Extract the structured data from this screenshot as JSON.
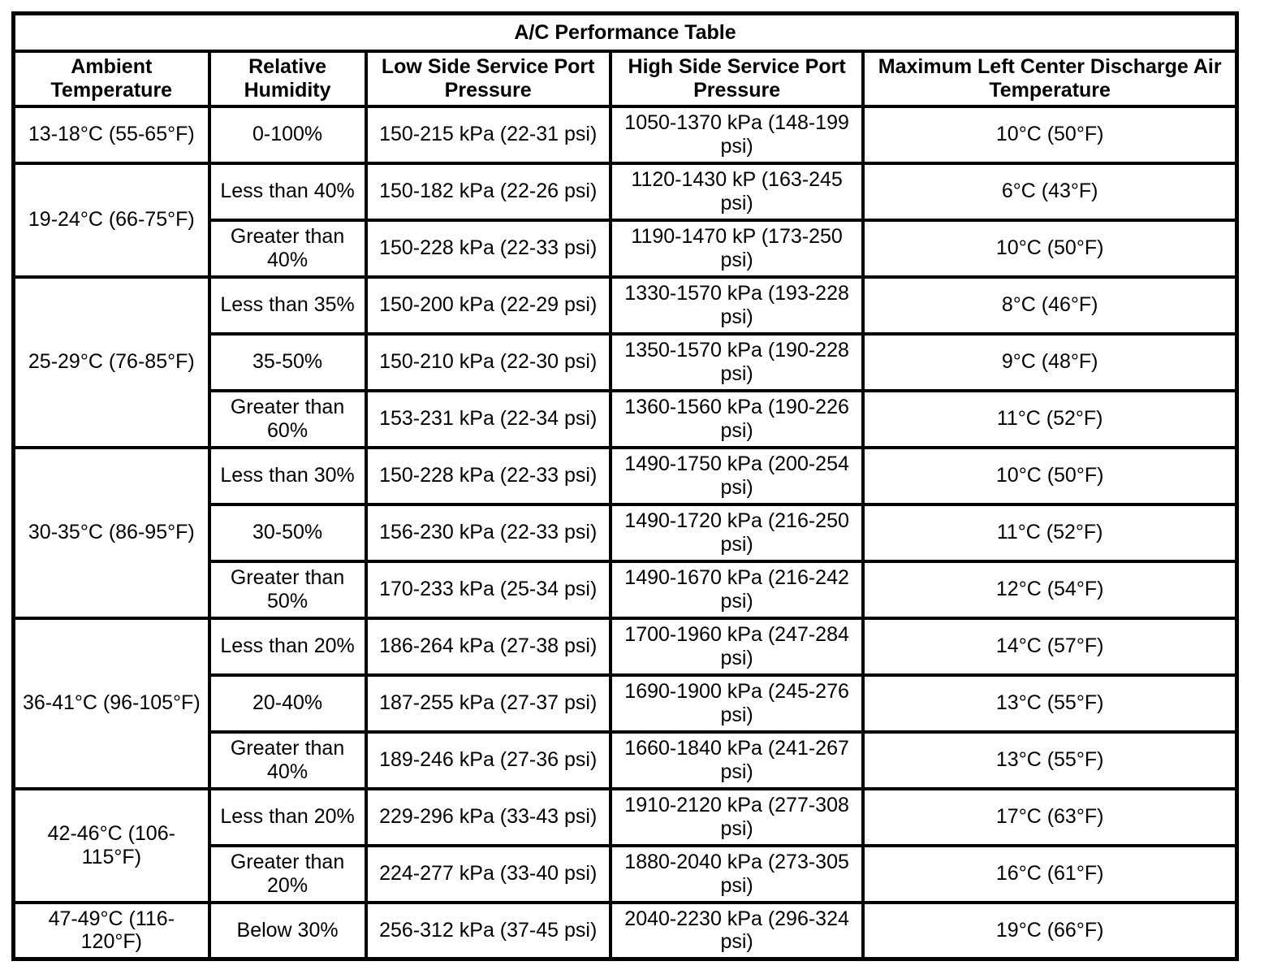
{
  "title": "A/C Performance Table",
  "columns": [
    "Ambient Temperature",
    "Relative Humidity",
    "Low Side Service Port Pressure",
    "High Side Service Port Pressure",
    "Maximum Left Center Discharge Air Temperature"
  ],
  "colors": {
    "border": "#000000",
    "background": "#ffffff",
    "text": "#000000"
  },
  "groups": [
    {
      "ambient": "13-18°C (55-65°F)",
      "rows": [
        {
          "humidity": "0-100%",
          "low_side": "150-215 kPa (22-31 psi)",
          "high_side": "1050-1370 kPa (148-199 psi)",
          "max_discharge": "10°C (50°F)"
        }
      ]
    },
    {
      "ambient": "19-24°C (66-75°F)",
      "rows": [
        {
          "humidity": "Less than 40%",
          "low_side": "150-182 kPa (22-26 psi)",
          "high_side": "1120-1430 kP (163-245 psi)",
          "max_discharge": "6°C (43°F)"
        },
        {
          "humidity": "Greater than 40%",
          "low_side": "150-228 kPa (22-33 psi)",
          "high_side": "1190-1470 kP (173-250 psi)",
          "max_discharge": "10°C (50°F)"
        }
      ]
    },
    {
      "ambient": "25-29°C (76-85°F)",
      "rows": [
        {
          "humidity": "Less than 35%",
          "low_side": "150-200 kPa (22-29 psi)",
          "high_side": "1330-1570 kPa (193-228 psi)",
          "max_discharge": "8°C (46°F)"
        },
        {
          "humidity": "35-50%",
          "low_side": "150-210 kPa (22-30 psi)",
          "high_side": "1350-1570 kPa (190-228 psi)",
          "max_discharge": "9°C (48°F)"
        },
        {
          "humidity": "Greater than 60%",
          "low_side": "153-231 kPa (22-34 psi)",
          "high_side": "1360-1560 kPa (190-226 psi)",
          "max_discharge": "11°C (52°F)"
        }
      ]
    },
    {
      "ambient": "30-35°C (86-95°F)",
      "rows": [
        {
          "humidity": "Less than 30%",
          "low_side": "150-228 kPa (22-33 psi)",
          "high_side": "1490-1750 kPa (200-254 psi)",
          "max_discharge": "10°C (50°F)"
        },
        {
          "humidity": "30-50%",
          "low_side": "156-230 kPa (22-33 psi)",
          "high_side": "1490-1720 kPa (216-250 psi)",
          "max_discharge": "11°C (52°F)"
        },
        {
          "humidity": "Greater than 50%",
          "low_side": "170-233 kPa (25-34 psi)",
          "high_side": "1490-1670 kPa (216-242 psi)",
          "max_discharge": "12°C (54°F)"
        }
      ]
    },
    {
      "ambient": "36-41°C (96-105°F)",
      "rows": [
        {
          "humidity": "Less than 20%",
          "low_side": "186-264 kPa (27-38 psi)",
          "high_side": "1700-1960 kPa (247-284 psi)",
          "max_discharge": "14°C (57°F)"
        },
        {
          "humidity": "20-40%",
          "low_side": "187-255 kPa (27-37 psi)",
          "high_side": "1690-1900 kPa (245-276 psi)",
          "max_discharge": "13°C (55°F)"
        },
        {
          "humidity": "Greater than 40%",
          "low_side": "189-246 kPa (27-36 psi)",
          "high_side": "1660-1840 kPa (241-267 psi)",
          "max_discharge": "13°C (55°F)"
        }
      ]
    },
    {
      "ambient": "42-46°C (106-115°F)",
      "rows": [
        {
          "humidity": "Less than 20%",
          "low_side": "229-296 kPa (33-43 psi)",
          "high_side": "1910-2120 kPa (277-308 psi)",
          "max_discharge": "17°C (63°F)"
        },
        {
          "humidity": "Greater than 20%",
          "low_side": "224-277 kPa (33-40 psi)",
          "high_side": "1880-2040 kPa (273-305 psi)",
          "max_discharge": "16°C (61°F)"
        }
      ]
    },
    {
      "ambient": "47-49°C (116-120°F)",
      "rows": [
        {
          "humidity": "Below 30%",
          "low_side": "256-312 kPa (37-45 psi)",
          "high_side": "2040-2230 kPa (296-324 psi)",
          "max_discharge": "19°C (66°F)"
        }
      ]
    }
  ],
  "chart_data": {
    "type": "table",
    "title": "A/C Performance Table",
    "columns": [
      "Ambient Temperature",
      "Relative Humidity",
      "Low Side Service Port Pressure",
      "High Side Service Port Pressure",
      "Maximum Left Center Discharge Air Temperature"
    ],
    "rows": [
      [
        "13-18°C (55-65°F)",
        "0-100%",
        "150-215 kPa (22-31 psi)",
        "1050-1370 kPa (148-199 psi)",
        "10°C (50°F)"
      ],
      [
        "19-24°C (66-75°F)",
        "Less than 40%",
        "150-182 kPa (22-26 psi)",
        "1120-1430 kP (163-245 psi)",
        "6°C (43°F)"
      ],
      [
        "19-24°C (66-75°F)",
        "Greater than 40%",
        "150-228 kPa (22-33 psi)",
        "1190-1470 kP (173-250 psi)",
        "10°C (50°F)"
      ],
      [
        "25-29°C (76-85°F)",
        "Less than 35%",
        "150-200 kPa (22-29 psi)",
        "1330-1570 kPa (193-228 psi)",
        "8°C (46°F)"
      ],
      [
        "25-29°C (76-85°F)",
        "35-50%",
        "150-210 kPa (22-30 psi)",
        "1350-1570 kPa (190-228 psi)",
        "9°C (48°F)"
      ],
      [
        "25-29°C (76-85°F)",
        "Greater than 60%",
        "153-231 kPa (22-34 psi)",
        "1360-1560 kPa (190-226 psi)",
        "11°C (52°F)"
      ],
      [
        "30-35°C (86-95°F)",
        "Less than 30%",
        "150-228 kPa (22-33 psi)",
        "1490-1750 kPa (200-254 psi)",
        "10°C (50°F)"
      ],
      [
        "30-35°C (86-95°F)",
        "30-50%",
        "156-230 kPa (22-33 psi)",
        "1490-1720 kPa (216-250 psi)",
        "11°C (52°F)"
      ],
      [
        "30-35°C (86-95°F)",
        "Greater than 50%",
        "170-233 kPa (25-34 psi)",
        "1490-1670 kPa (216-242 psi)",
        "12°C (54°F)"
      ],
      [
        "36-41°C (96-105°F)",
        "Less than 20%",
        "186-264 kPa (27-38 psi)",
        "1700-1960 kPa (247-284 psi)",
        "14°C (57°F)"
      ],
      [
        "36-41°C (96-105°F)",
        "20-40%",
        "187-255 kPa (27-37 psi)",
        "1690-1900 kPa (245-276 psi)",
        "13°C (55°F)"
      ],
      [
        "36-41°C (96-105°F)",
        "Greater than 40%",
        "189-246 kPa (27-36 psi)",
        "1660-1840 kPa (241-267 psi)",
        "13°C (55°F)"
      ],
      [
        "42-46°C (106-115°F)",
        "Less than 20%",
        "229-296 kPa (33-43 psi)",
        "1910-2120 kPa (277-308 psi)",
        "17°C (63°F)"
      ],
      [
        "42-46°C (106-115°F)",
        "Greater than 20%",
        "224-277 kPa (33-40 psi)",
        "1880-2040 kPa (273-305 psi)",
        "16°C (61°F)"
      ],
      [
        "47-49°C (116-120°F)",
        "Below 30%",
        "256-312 kPa (37-45 psi)",
        "2040-2230 kPa (296-324 psi)",
        "19°C (66°F)"
      ]
    ]
  }
}
